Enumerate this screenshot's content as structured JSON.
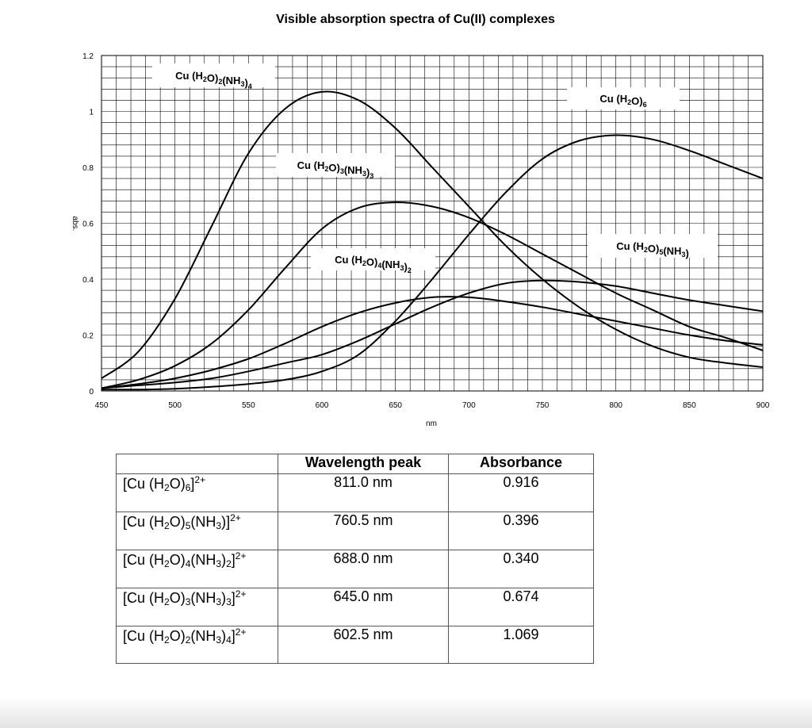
{
  "chart_data": {
    "type": "line",
    "title": "Visible absorption spectra of Cu(II) complexes",
    "xlabel": "nm",
    "ylabel": "abs.",
    "xlim": [
      450,
      900
    ],
    "ylim": [
      0,
      1.2
    ],
    "x_ticks": [
      450,
      500,
      550,
      600,
      650,
      700,
      750,
      800,
      850,
      900
    ],
    "y_ticks": [
      0,
      0.2,
      0.4,
      0.6,
      0.8,
      1,
      1.2
    ],
    "y_tick_labels": [
      "0",
      "0.2",
      "0.4",
      "0.6",
      "0.8",
      "1",
      "1.2"
    ],
    "grid": true,
    "line_color": "#000000",
    "x": [
      450,
      475,
      500,
      525,
      550,
      575,
      600,
      625,
      650,
      675,
      700,
      725,
      750,
      775,
      800,
      825,
      850,
      875,
      900
    ],
    "series": [
      {
        "name": "Cu (H2O)6",
        "label_parts": [
          [
            "Cu (H",
            ""
          ],
          [
            "2",
            "sub"
          ],
          [
            "O)",
            ""
          ],
          [
            "6",
            "sub"
          ]
        ],
        "values": [
          0.005,
          0.005,
          0.008,
          0.015,
          0.025,
          0.04,
          0.07,
          0.13,
          0.25,
          0.4,
          0.56,
          0.71,
          0.83,
          0.895,
          0.915,
          0.9,
          0.86,
          0.81,
          0.76
        ]
      },
      {
        "name": "Cu (H2O)5(NH3)",
        "label_parts": [
          [
            "Cu (H",
            ""
          ],
          [
            "2",
            "sub"
          ],
          [
            "O)",
            ""
          ],
          [
            "5",
            "sub"
          ],
          [
            "(NH",
            ""
          ],
          [
            "3",
            "sub"
          ],
          [
            ")",
            ""
          ]
        ],
        "values": [
          0.01,
          0.02,
          0.03,
          0.045,
          0.07,
          0.1,
          0.13,
          0.18,
          0.24,
          0.3,
          0.35,
          0.385,
          0.395,
          0.39,
          0.375,
          0.35,
          0.325,
          0.305,
          0.285
        ]
      },
      {
        "name": "Cu (H2O)4(NH3)2",
        "label_parts": [
          [
            "Cu (H",
            ""
          ],
          [
            "2",
            "sub"
          ],
          [
            "O)",
            ""
          ],
          [
            "4",
            "sub"
          ],
          [
            "(NH",
            ""
          ],
          [
            "3",
            "sub"
          ],
          [
            ")",
            ""
          ],
          [
            "2",
            "sub"
          ]
        ],
        "values": [
          0.01,
          0.025,
          0.045,
          0.075,
          0.115,
          0.17,
          0.23,
          0.28,
          0.315,
          0.335,
          0.335,
          0.32,
          0.3,
          0.275,
          0.25,
          0.225,
          0.2,
          0.18,
          0.165
        ]
      },
      {
        "name": "Cu (H2O)3(NH3)3",
        "label_parts": [
          [
            "Cu (H",
            ""
          ],
          [
            "2",
            "sub"
          ],
          [
            "O)",
            ""
          ],
          [
            "3",
            "sub"
          ],
          [
            "(NH",
            ""
          ],
          [
            "3",
            "sub"
          ],
          [
            ")",
            ""
          ],
          [
            "3",
            "sub"
          ]
        ],
        "values": [
          0.01,
          0.04,
          0.09,
          0.17,
          0.29,
          0.44,
          0.58,
          0.655,
          0.675,
          0.66,
          0.62,
          0.56,
          0.49,
          0.42,
          0.35,
          0.29,
          0.23,
          0.19,
          0.145
        ]
      },
      {
        "name": "Cu (H2O)2(NH3)4",
        "label_parts": [
          [
            "Cu (H",
            ""
          ],
          [
            "2",
            "sub"
          ],
          [
            "O)",
            ""
          ],
          [
            "2",
            "sub"
          ],
          [
            "(NH",
            ""
          ],
          [
            "3",
            "sub"
          ],
          [
            ")",
            ""
          ],
          [
            "4",
            "sub"
          ]
        ],
        "values": [
          0.045,
          0.14,
          0.33,
          0.59,
          0.85,
          1.01,
          1.07,
          1.04,
          0.94,
          0.8,
          0.66,
          0.52,
          0.4,
          0.3,
          0.22,
          0.16,
          0.12,
          0.1,
          0.085
        ]
      }
    ]
  },
  "table": {
    "headers": [
      "",
      "Wavelength peak",
      "Absorbance"
    ],
    "rows": [
      {
        "name_parts": [
          [
            "[Cu (H",
            ""
          ],
          [
            "2",
            "sub"
          ],
          [
            "O)",
            ""
          ],
          [
            "6",
            "sub"
          ],
          [
            "]",
            ""
          ],
          [
            "2+",
            "sup"
          ]
        ],
        "wavelength": "811.0 nm",
        "absorbance": "0.916"
      },
      {
        "name_parts": [
          [
            "[Cu (H",
            ""
          ],
          [
            "2",
            "sub"
          ],
          [
            "O)",
            ""
          ],
          [
            "5",
            "sub"
          ],
          [
            "(NH",
            ""
          ],
          [
            "3",
            "sub"
          ],
          [
            ")]",
            ""
          ],
          [
            "2+",
            "sup"
          ]
        ],
        "wavelength": "760.5 nm",
        "absorbance": "0.396"
      },
      {
        "name_parts": [
          [
            "[Cu (H",
            ""
          ],
          [
            "2",
            "sub"
          ],
          [
            "O)",
            ""
          ],
          [
            "4",
            "sub"
          ],
          [
            "(NH",
            ""
          ],
          [
            "3",
            "sub"
          ],
          [
            ")",
            ""
          ],
          [
            "2",
            "sub"
          ],
          [
            "]",
            ""
          ],
          [
            "2+",
            "sup"
          ]
        ],
        "wavelength": "688.0 nm",
        "absorbance": "0.340"
      },
      {
        "name_parts": [
          [
            "[Cu (H",
            ""
          ],
          [
            "2",
            "sub"
          ],
          [
            "O)",
            ""
          ],
          [
            "3",
            "sub"
          ],
          [
            "(NH",
            ""
          ],
          [
            "3",
            "sub"
          ],
          [
            ")",
            ""
          ],
          [
            "3",
            "sub"
          ],
          [
            "]",
            ""
          ],
          [
            "2+",
            "sup"
          ]
        ],
        "wavelength": "645.0 nm",
        "absorbance": "0.674"
      },
      {
        "name_parts": [
          [
            "[Cu (H",
            ""
          ],
          [
            "2",
            "sub"
          ],
          [
            "O)",
            ""
          ],
          [
            "2",
            "sub"
          ],
          [
            "(NH",
            ""
          ],
          [
            "3",
            "sub"
          ],
          [
            ")",
            ""
          ],
          [
            "4",
            "sub"
          ],
          [
            "]",
            ""
          ],
          [
            "2+",
            "sup"
          ]
        ],
        "wavelength": "602.5 nm",
        "absorbance": "1.069"
      }
    ]
  }
}
